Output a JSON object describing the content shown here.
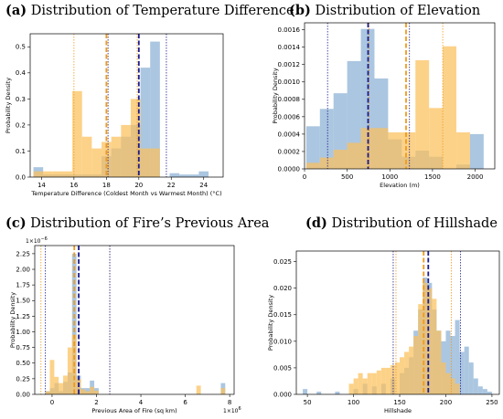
{
  "colors": {
    "series_a": "#fbc15c",
    "series_b": "#8fb3d6",
    "line_a": "#f09a1a",
    "line_b": "#1b1b8c"
  },
  "chart_data": [
    {
      "type": "bar",
      "label": "(a)",
      "title": "Distribution of Temperature Difference",
      "xlabel": "Temperature Difference (Coldest Month vs Warmest Month) (°C)",
      "ylabel": "Probability Density",
      "xlim": [
        13.3,
        25.2
      ],
      "ylim": [
        0,
        0.55
      ],
      "xticks": [
        14,
        16,
        18,
        20,
        22,
        24
      ],
      "yticks": [
        0.0,
        0.1,
        0.2,
        0.3,
        0.4,
        0.5
      ],
      "ytick_labels": [
        "0.0",
        "0.1",
        "0.2",
        "0.3",
        "0.4",
        "0.5"
      ],
      "exponent_label": "",
      "grid": false,
      "series": [
        {
          "bins": [
            [
              13.5,
              14.1,
              0.022
            ],
            [
              14.1,
              14.7,
              0.022
            ],
            [
              14.7,
              15.3,
              0.022
            ],
            [
              15.3,
              15.9,
              0.022
            ],
            [
              15.9,
              16.5,
              0.33
            ],
            [
              16.5,
              17.1,
              0.155
            ],
            [
              17.1,
              17.7,
              0.11
            ],
            [
              17.7,
              18.3,
              0.135
            ],
            [
              18.3,
              18.9,
              0.155
            ],
            [
              18.9,
              19.5,
              0.2
            ],
            [
              19.5,
              20.1,
              0.3
            ],
            [
              20.1,
              20.7,
              0.11
            ],
            [
              20.7,
              21.3,
              0.11
            ]
          ]
        },
        {
          "bins": [
            [
              13.5,
              14.1,
              0.038
            ],
            [
              14.1,
              14.7,
              0.01
            ],
            [
              14.7,
              15.3,
              0.01
            ],
            [
              15.3,
              15.9,
              0.01
            ],
            [
              15.9,
              16.5,
              0.01
            ],
            [
              16.5,
              17.1,
              0.01
            ],
            [
              17.1,
              17.7,
              0.01
            ],
            [
              17.7,
              18.3,
              0.08
            ],
            [
              18.3,
              18.9,
              0.11
            ],
            [
              18.9,
              19.5,
              0.155
            ],
            [
              19.5,
              20.1,
              0.2
            ],
            [
              20.1,
              20.7,
              0.42
            ],
            [
              20.7,
              21.3,
              0.52
            ],
            [
              21.9,
              22.5,
              0.015
            ],
            [
              22.5,
              23.1,
              0.01
            ],
            [
              23.1,
              23.7,
              0.01
            ],
            [
              23.7,
              24.3,
              0.022
            ]
          ]
        }
      ],
      "vlines": [
        {
          "x": 18.0,
          "series": 0,
          "style": "mean"
        },
        {
          "x": 16.0,
          "series": 0,
          "style": "band"
        },
        {
          "x": 19.9,
          "series": 0,
          "style": "band"
        },
        {
          "x": 20.0,
          "series": 1,
          "style": "mean"
        },
        {
          "x": 18.1,
          "series": 1,
          "style": "band"
        },
        {
          "x": 21.7,
          "series": 1,
          "style": "band"
        }
      ]
    },
    {
      "type": "bar",
      "label": "(b)",
      "title": "Distribution of Elevation",
      "xlabel": "Elevation (m)",
      "ylabel": "Probability Density",
      "xlim": [
        0,
        2230
      ],
      "ylim": [
        0,
        0.00168
      ],
      "xticks": [
        0,
        500,
        1000,
        1500,
        2000
      ],
      "yticks": [
        0,
        0.0002,
        0.0004,
        0.0006,
        0.0008,
        0.001,
        0.0012,
        0.0014,
        0.0016
      ],
      "ytick_labels": [
        "0.0000",
        "0.0002",
        "0.0004",
        "0.0006",
        "0.0008",
        "0.0010",
        "0.0012",
        "0.0014",
        "0.0016"
      ],
      "exponent_label": "",
      "grid": false,
      "series": [
        {
          "bins": [
            [
              20,
              180,
              7e-05
            ],
            [
              180,
              340,
              0.00013
            ],
            [
              340,
              500,
              0.00022
            ],
            [
              500,
              660,
              0.0003
            ],
            [
              660,
              820,
              0.00047
            ],
            [
              820,
              980,
              0.00047
            ],
            [
              980,
              1140,
              0.00042
            ],
            [
              1140,
              1300,
              0.00042
            ],
            [
              1300,
              1460,
              0.00125
            ],
            [
              1460,
              1620,
              0.0007
            ],
            [
              1620,
              1780,
              0.00141
            ],
            [
              1780,
              1940,
              0.00042
            ]
          ]
        },
        {
          "bins": [
            [
              20,
              180,
              0.00049
            ],
            [
              180,
              340,
              0.00069
            ],
            [
              340,
              500,
              0.00087
            ],
            [
              500,
              660,
              0.00124
            ],
            [
              660,
              820,
              0.00161
            ],
            [
              820,
              980,
              0.00104
            ],
            [
              980,
              1140,
              0.00034
            ],
            [
              1140,
              1300,
              0.00014
            ],
            [
              1300,
              1460,
              0.00021
            ],
            [
              1460,
              1620,
              0.00014
            ],
            [
              1620,
              1780,
              0.0
            ],
            [
              1780,
              1940,
              5e-05
            ],
            [
              1940,
              2100,
              0.0004
            ]
          ]
        }
      ],
      "vlines": [
        {
          "x": 1190,
          "series": 0,
          "style": "mean"
        },
        {
          "x": 755,
          "series": 0,
          "style": "band"
        },
        {
          "x": 1620,
          "series": 0,
          "style": "band"
        },
        {
          "x": 745,
          "series": 1,
          "style": "mean"
        },
        {
          "x": 270,
          "series": 1,
          "style": "band"
        },
        {
          "x": 1230,
          "series": 1,
          "style": "band"
        }
      ]
    },
    {
      "type": "bar",
      "label": "(c)",
      "title": "Distribution of Fire’s Previous Area",
      "xlabel": "Previous Area of Fire (sq km)",
      "ylabel": "Probability Density",
      "xlim": [
        -0.78,
        8.2
      ],
      "ylim": [
        0,
        2.38
      ],
      "xticks": [
        0,
        2,
        4,
        6,
        8
      ],
      "yticks": [
        0,
        0.25,
        0.5,
        0.75,
        1.0,
        1.25,
        1.5,
        1.75,
        2.0,
        2.25
      ],
      "ytick_labels": [
        "0.00",
        "0.25",
        "0.50",
        "0.75",
        "1.00",
        "1.25",
        "1.50",
        "1.75",
        "2.00",
        "2.25"
      ],
      "exponent_label": "1e-6",
      "x_exponent_label": "1e6",
      "grid": false,
      "series": [
        {
          "bins": [
            [
              -0.3,
              -0.1,
              0.05
            ],
            [
              -0.1,
              0.1,
              0.55
            ],
            [
              0.1,
              0.3,
              0.28
            ],
            [
              0.3,
              0.5,
              0.18
            ],
            [
              0.5,
              0.7,
              0.3
            ],
            [
              0.7,
              0.9,
              0.75
            ],
            [
              0.9,
              1.1,
              0.95
            ],
            [
              1.1,
              1.3,
              0.25
            ],
            [
              1.3,
              1.5,
              0.08
            ],
            [
              1.5,
              1.7,
              0.05
            ],
            [
              1.7,
              1.9,
              0.12
            ],
            [
              1.9,
              2.1,
              0.06
            ],
            [
              6.5,
              6.7,
              0.14
            ],
            [
              7.6,
              7.8,
              0.1
            ]
          ]
        },
        {
          "bins": [
            [
              -0.3,
              -0.1,
              0.05
            ],
            [
              -0.1,
              0.1,
              0.1
            ],
            [
              0.1,
              0.3,
              0.18
            ],
            [
              0.3,
              0.5,
              0.05
            ],
            [
              0.5,
              0.7,
              0.2
            ],
            [
              0.7,
              0.9,
              0.35
            ],
            [
              0.9,
              1.1,
              2.25
            ],
            [
              1.1,
              1.3,
              0.3
            ],
            [
              1.3,
              1.5,
              0.1
            ],
            [
              1.5,
              1.7,
              0.1
            ],
            [
              1.7,
              1.9,
              0.22
            ],
            [
              1.9,
              2.1,
              0.1
            ],
            [
              7.6,
              7.8,
              0.18
            ]
          ]
        }
      ],
      "vlines": [
        {
          "x": 1.0,
          "series": 0,
          "style": "mean"
        },
        {
          "x": -0.5,
          "series": 0,
          "style": "band"
        },
        {
          "x": 2.6,
          "series": 0,
          "style": "band"
        },
        {
          "x": 1.2,
          "series": 1,
          "style": "mean"
        },
        {
          "x": -0.3,
          "series": 1,
          "style": "band"
        },
        {
          "x": 2.6,
          "series": 1,
          "style": "band"
        }
      ]
    },
    {
      "type": "bar",
      "label": "(d)",
      "title": "Distribution of Hillshade",
      "xlabel": "Hillshade",
      "ylabel": "Probability Density",
      "xlim": [
        38,
        258
      ],
      "ylim": [
        0,
        0.027
      ],
      "xticks": [
        50,
        100,
        150,
        200,
        250
      ],
      "yticks": [
        0,
        0.005,
        0.01,
        0.015,
        0.02,
        0.025
      ],
      "ytick_labels": [
        "0.000",
        "0.005",
        "0.010",
        "0.015",
        "0.020",
        "0.025"
      ],
      "exponent_label": "",
      "grid": false,
      "series": [
        {
          "bins": [
            [
              95,
              100,
              0.002
            ],
            [
              100,
              105,
              0.003
            ],
            [
              105,
              110,
              0.004
            ],
            [
              110,
              115,
              0.003
            ],
            [
              115,
              120,
              0.004
            ],
            [
              120,
              125,
              0.004
            ],
            [
              125,
              130,
              0.0045
            ],
            [
              130,
              135,
              0.005
            ],
            [
              135,
              140,
              0.005
            ],
            [
              140,
              145,
              0.0055
            ],
            [
              145,
              150,
              0.006
            ],
            [
              150,
              155,
              0.007
            ],
            [
              155,
              160,
              0.008
            ],
            [
              160,
              165,
              0.009
            ],
            [
              165,
              170,
              0.011
            ],
            [
              170,
              175,
              0.017
            ],
            [
              175,
              180,
              0.021
            ],
            [
              180,
              185,
              0.02
            ],
            [
              185,
              190,
              0.018
            ],
            [
              190,
              195,
              0.012
            ],
            [
              195,
              200,
              0.006
            ],
            [
              200,
              205,
              0.004
            ],
            [
              205,
              210,
              0.003
            ],
            [
              210,
              215,
              0.002
            ]
          ]
        },
        {
          "bins": [
            [
              45,
              50,
              0.001
            ],
            [
              60,
              65,
              0.0005
            ],
            [
              80,
              85,
              0.0005
            ],
            [
              100,
              105,
              0.001
            ],
            [
              110,
              115,
              0.002
            ],
            [
              120,
              125,
              0.0015
            ],
            [
              130,
              135,
              0.002
            ],
            [
              140,
              145,
              0.003
            ],
            [
              150,
              155,
              0.004
            ],
            [
              155,
              160,
              0.005
            ],
            [
              160,
              165,
              0.007
            ],
            [
              165,
              170,
              0.012
            ],
            [
              170,
              175,
              0.016
            ],
            [
              175,
              180,
              0.022
            ],
            [
              180,
              185,
              0.021
            ],
            [
              185,
              190,
              0.016
            ],
            [
              190,
              195,
              0.012
            ],
            [
              195,
              200,
              0.01
            ],
            [
              200,
              205,
              0.012
            ],
            [
              205,
              210,
              0.011
            ],
            [
              210,
              215,
              0.014
            ],
            [
              215,
              220,
              0.008
            ],
            [
              220,
              225,
              0.009
            ],
            [
              225,
              230,
              0.006
            ],
            [
              230,
              235,
              0.003
            ],
            [
              235,
              240,
              0.0015
            ],
            [
              240,
              245,
              0.001
            ],
            [
              245,
              250,
              0.0005
            ]
          ]
        }
      ],
      "vlines": [
        {
          "x": 176,
          "series": 0,
          "style": "mean"
        },
        {
          "x": 146,
          "series": 0,
          "style": "band"
        },
        {
          "x": 206,
          "series": 0,
          "style": "band"
        },
        {
          "x": 181,
          "series": 1,
          "style": "mean"
        },
        {
          "x": 143,
          "series": 1,
          "style": "band"
        },
        {
          "x": 216,
          "series": 1,
          "style": "band"
        }
      ]
    }
  ]
}
